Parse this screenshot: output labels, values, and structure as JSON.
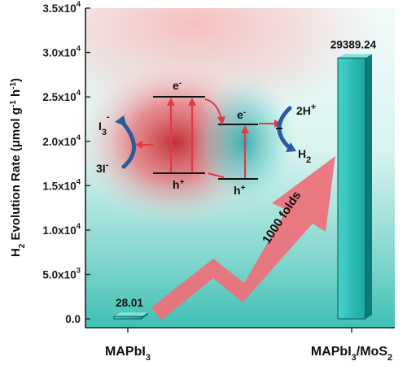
{
  "chart_data": {
    "type": "bar",
    "categories": [
      "MAPbI3",
      "MAPbI3/MoS2"
    ],
    "values": [
      28.01,
      29389.24
    ],
    "data_labels": [
      "28.01",
      "29389.24"
    ],
    "ylim": [
      -1000,
      35000
    ],
    "yticks": [
      0,
      5000,
      10000,
      15000,
      20000,
      25000,
      30000,
      35000
    ],
    "ytick_labels": [
      {
        "mant": "0.0",
        "exp": ""
      },
      {
        "mant": "5.0x10",
        "exp": "3"
      },
      {
        "mant": "1.0x10",
        "exp": "4"
      },
      {
        "mant": "1.5x10",
        "exp": "4"
      },
      {
        "mant": "2.0x10",
        "exp": "4"
      },
      {
        "mant": "2.5x10",
        "exp": "4"
      },
      {
        "mant": "3.0x10",
        "exp": "4"
      },
      {
        "mant": "3.5x10",
        "exp": "4"
      }
    ],
    "ylabel": "H2 Evolution Rate (μmol g-1 h-1)",
    "category_labels": [
      {
        "main": "MAPbI",
        "sub": "3",
        "tail": ""
      },
      {
        "main": "MAPbI",
        "sub": "3",
        "tail": "/MoS",
        "sub2": "2"
      }
    ],
    "grid": false,
    "legend": "none",
    "colors": {
      "bar_face": "#2fc2bb",
      "bar_side": "#0d7b78",
      "bar_edge": "#0a4f4d",
      "arrow": "#f0707c"
    }
  },
  "annotation": {
    "arrow_label": "1000 folds",
    "diagram": {
      "e_left": "e",
      "e_left_sup": "-",
      "e_right": "e",
      "e_right_sup": "-",
      "h_left": "h",
      "h_left_sup": "+",
      "h_right": "h",
      "h_right_sup": "+",
      "i3": "I",
      "i3_sub": "3",
      "i3_sup": "-",
      "three_i": "3I",
      "three_i_sup": "-",
      "two_h": "2H",
      "two_h_sup": "+",
      "h2": "H",
      "h2_sub": "2"
    }
  }
}
